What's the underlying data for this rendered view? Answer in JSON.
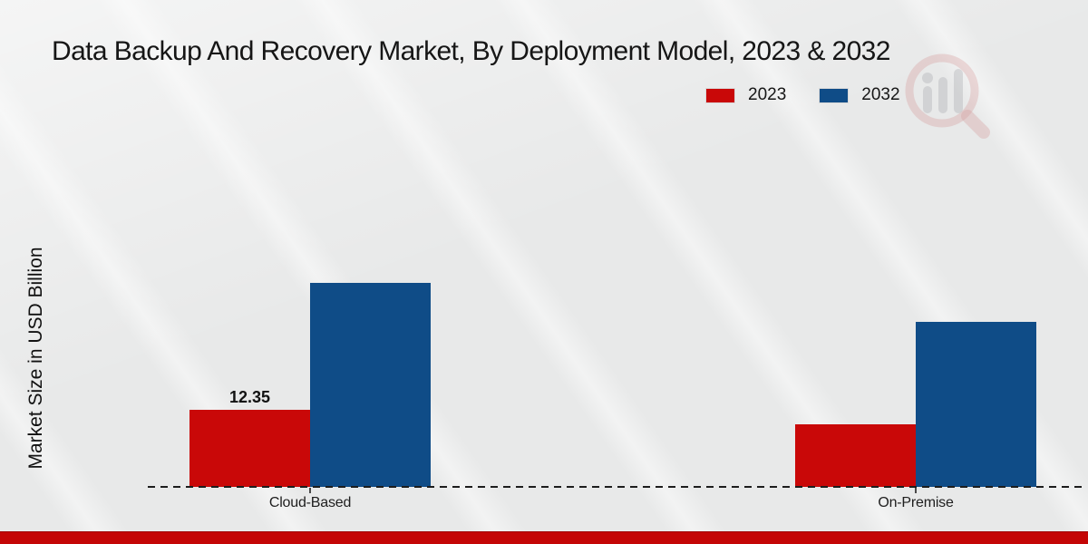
{
  "page": {
    "background_color": "#e8e9e9",
    "accent_bar_color": "#c40606"
  },
  "branding": {
    "watermark_icon": "magnifier-bar-chart-watermark"
  },
  "chart_data": {
    "type": "bar",
    "title": "Data Backup And Recovery Market, By Deployment Model, 2023 & 2032",
    "xlabel": "",
    "ylabel": "Market Size in USD Billion",
    "categories": [
      "Cloud-Based",
      "On-Premise"
    ],
    "series": [
      {
        "name": "2023",
        "color": "#c90808",
        "values": [
          12.35,
          10.0
        ]
      },
      {
        "name": "2032",
        "color": "#0f4c87",
        "values": [
          32.7,
          26.4
        ]
      }
    ],
    "data_labels": [
      {
        "category_index": 0,
        "series_index": 0,
        "text": "12.35"
      }
    ],
    "legend": {
      "position": "top-right",
      "entries": [
        "2023",
        "2032"
      ]
    },
    "grid": false,
    "x_axis_style": "dashed-line",
    "ylim": [
      0,
      35
    ]
  }
}
